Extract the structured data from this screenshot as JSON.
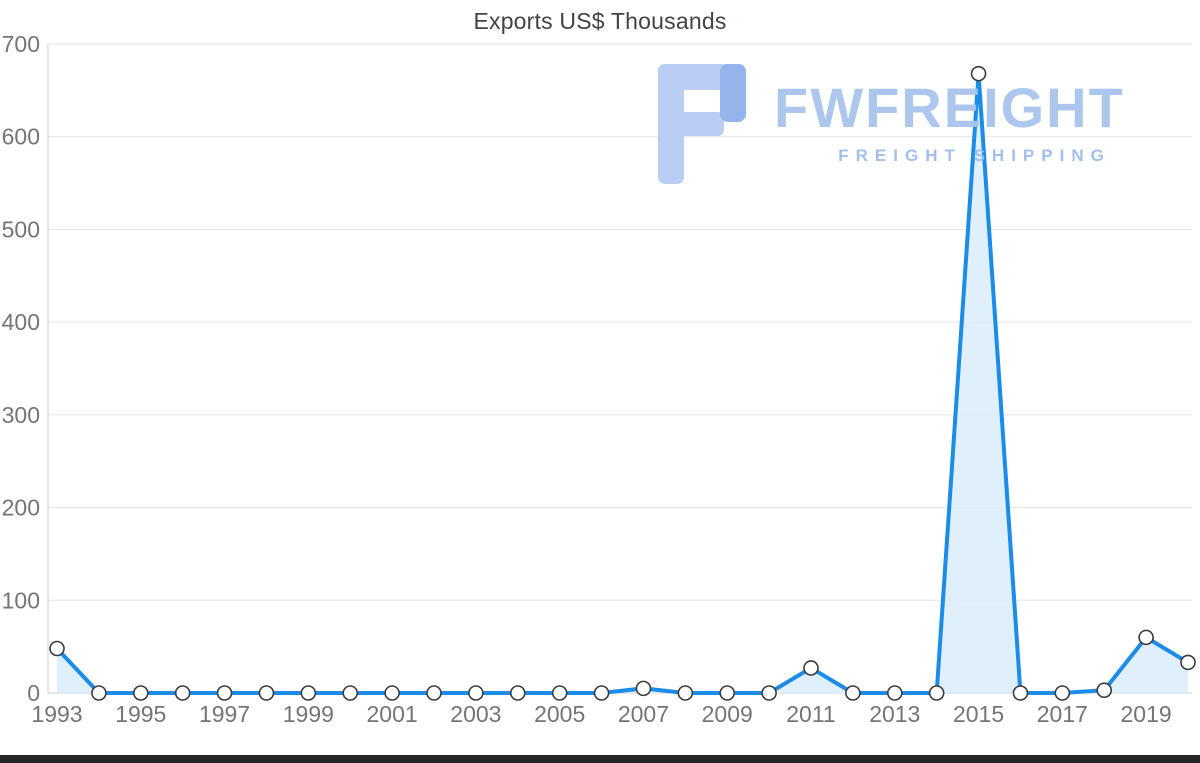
{
  "chart_data": {
    "type": "area",
    "title": "Exports US$ Thousands",
    "x": [
      1993,
      1994,
      1995,
      1996,
      1997,
      1998,
      1999,
      2000,
      2001,
      2002,
      2003,
      2004,
      2005,
      2006,
      2007,
      2008,
      2009,
      2010,
      2011,
      2012,
      2013,
      2014,
      2015,
      2016,
      2017,
      2018,
      2019,
      2020
    ],
    "values": [
      48,
      0,
      0,
      0,
      0,
      0,
      0,
      0,
      0,
      0,
      0,
      0,
      0,
      0,
      5,
      0,
      0,
      0,
      27,
      0,
      0,
      0,
      668,
      0,
      0,
      3,
      60,
      33
    ],
    "xlabel": "",
    "ylabel": "",
    "ylim": [
      0,
      700
    ],
    "yticks": [
      0,
      100,
      200,
      300,
      400,
      500,
      600,
      700
    ],
    "xtick_labels": [
      "1993",
      "1995",
      "1997",
      "1999",
      "2001",
      "2003",
      "2005",
      "2007",
      "2009",
      "2011",
      "2013",
      "2015",
      "2017",
      "2019"
    ],
    "grid": "horizontal",
    "legend": "none",
    "line_color": "#1b8ce8",
    "area_color": "#d9ecfc",
    "marker_fill": "#ffffff",
    "marker_stroke": "#3c3c3c",
    "grid_color": "#e3e3e3",
    "axis_color": "#cfcfcf",
    "tick_label_color": "#757575"
  },
  "watermark": {
    "brand": "FWFREIGHT",
    "subtitle": "FREIGHT SHIPPING",
    "color_light": "#b7cbf3",
    "color_dark": "#8fb0ea"
  }
}
